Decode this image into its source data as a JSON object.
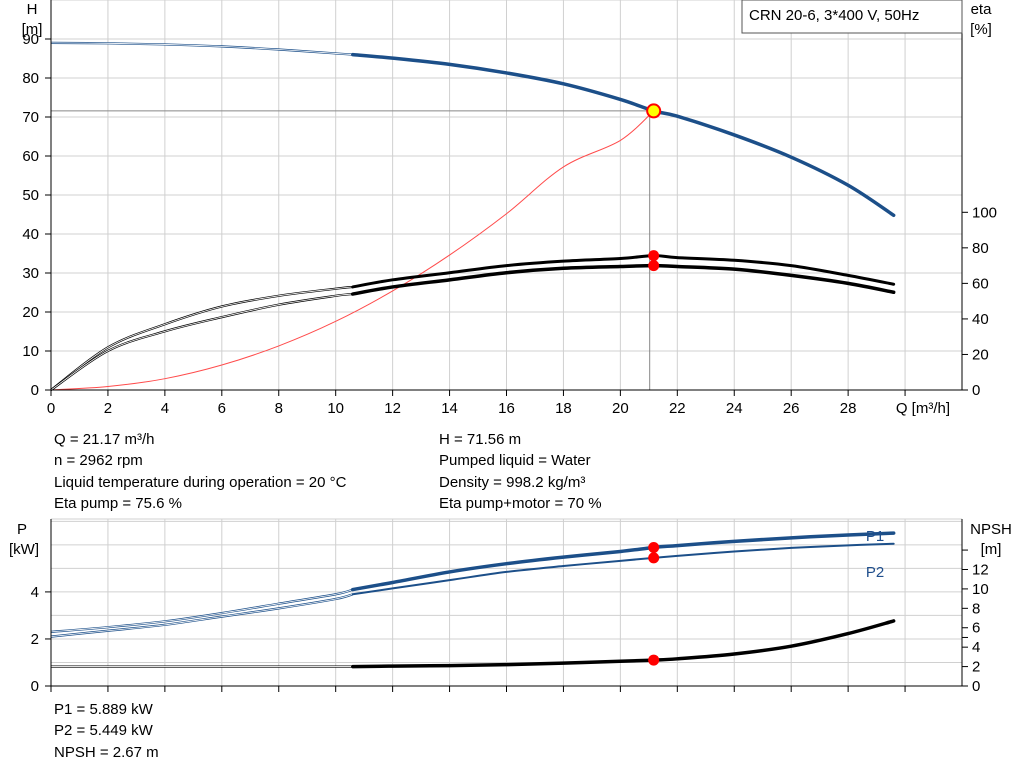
{
  "legend": "CRN 20-6, 3*400 V, 50Hz",
  "colors": {
    "head_curve": "#1c4f89",
    "power_curve": "#1c4f89",
    "efficiency_curve": "#000000",
    "system_curve": "#ff4b4b",
    "duty_point": "#ff0000",
    "duty_point_fill": "#ffff00",
    "grid": "#d0d0d0"
  },
  "info_top_left": [
    "Q = 21.17 m³/h",
    "n = 2962 rpm",
    "Liquid temperature during operation = 20 °C",
    "Eta pump = 75.6 %"
  ],
  "info_top_right": [
    "H = 71.56 m",
    "Pumped liquid = Water",
    "Density = 998.2 kg/m³",
    "Eta pump+motor = 70 %"
  ],
  "info_bottom": [
    "P1 = 5.889 kW",
    "P2 = 5.449 kW",
    "NPSH = 2.67 m"
  ],
  "chart_data": [
    {
      "type": "line",
      "name": "head-efficiency",
      "xlabel": "Q [m³/h]",
      "ylabel_left": [
        "H",
        "[m]"
      ],
      "ylabel_right": [
        "eta",
        "[%]"
      ],
      "xlim": [
        0,
        32
      ],
      "ylim_left": [
        0,
        100
      ],
      "ylim_right": [
        0,
        100
      ],
      "x_ticks": [
        0,
        2,
        4,
        6,
        8,
        10,
        12,
        14,
        16,
        18,
        20,
        22,
        24,
        26,
        28
      ],
      "y_ticks_left": [
        0,
        10,
        20,
        30,
        40,
        50,
        60,
        70,
        80,
        90
      ],
      "y_ticks_right": [
        0,
        20,
        40,
        60,
        80,
        100
      ],
      "grid": true,
      "legend_position": "top-right",
      "duty_point": {
        "q": 21.17,
        "h": 71.56,
        "eta_pump": 75.6,
        "eta_pump_motor": 70
      },
      "series": [
        {
          "name": "H",
          "axis": "left",
          "operating_from": 10.6,
          "x": [
            0,
            2,
            4,
            6,
            8,
            10,
            10.6,
            12,
            14,
            16,
            18,
            20,
            21.17,
            22,
            24,
            26,
            28,
            29.6
          ],
          "y": [
            89,
            88.9,
            88.6,
            88.1,
            87.3,
            86.3,
            86,
            85.1,
            83.5,
            81.3,
            78.5,
            74.5,
            71.56,
            70.2,
            65.4,
            59.7,
            52.5,
            44.8
          ]
        },
        {
          "name": "Eta pump",
          "axis": "right",
          "operating_from": 10.6,
          "x": [
            0,
            2,
            4,
            6,
            8,
            10,
            10.6,
            12,
            14,
            16,
            18,
            20,
            21.17,
            22,
            24,
            26,
            28,
            29.6
          ],
          "y": [
            0,
            24,
            37,
            47,
            53,
            57,
            58,
            62,
            66,
            70,
            72.5,
            74,
            75.6,
            74.5,
            73,
            70,
            64.5,
            59.5
          ]
        },
        {
          "name": "Eta pump+motor",
          "axis": "right",
          "operating_from": 10.6,
          "x": [
            0,
            2,
            4,
            6,
            8,
            10,
            10.6,
            12,
            14,
            16,
            18,
            20,
            21.17,
            22,
            24,
            26,
            28,
            29.6
          ],
          "y": [
            0,
            22,
            33,
            41,
            48,
            53,
            54,
            58,
            62,
            66,
            68.5,
            69.5,
            70,
            69.5,
            68,
            64.5,
            60,
            55
          ]
        },
        {
          "name": "system curve",
          "axis": "left",
          "x": [
            0,
            2,
            4,
            6,
            8,
            10,
            12,
            14,
            16,
            18,
            20,
            21.17
          ],
          "y": [
            0,
            0.9,
            2.9,
            6.4,
            11.3,
            17.6,
            25.4,
            34.6,
            45.2,
            57.2,
            64,
            71.56
          ]
        }
      ]
    },
    {
      "type": "line",
      "name": "power-npsh",
      "xlabel": "",
      "ylabel_left": [
        "P",
        "[kW]"
      ],
      "ylabel_right": [
        "NPSH",
        "[m]"
      ],
      "xlim": [
        0,
        32
      ],
      "ylim_left": [
        0,
        7.1
      ],
      "ylim_right": [
        0,
        17.2
      ],
      "y_ticks_left": [
        0,
        2,
        4
      ],
      "y_ticks_right": [
        0,
        2,
        4,
        6,
        8,
        10,
        12
      ],
      "y_ticks_right_unlabeled": [
        5,
        14
      ],
      "grid": true,
      "series": [
        {
          "name": "P1",
          "axis": "left",
          "operating_from": 10.6,
          "x": [
            0,
            2,
            4,
            6,
            8,
            10,
            10.6,
            12,
            14,
            16,
            18,
            20,
            21.17,
            22,
            24,
            26,
            28,
            29.6
          ],
          "y": [
            2.3,
            2.5,
            2.75,
            3.1,
            3.5,
            3.9,
            4.1,
            4.4,
            4.85,
            5.2,
            5.48,
            5.72,
            5.889,
            5.97,
            6.15,
            6.3,
            6.42,
            6.5
          ]
        },
        {
          "name": "P2",
          "axis": "left",
          "operating_from": 10.6,
          "x": [
            0,
            2,
            4,
            6,
            8,
            10,
            10.6,
            12,
            14,
            16,
            18,
            20,
            21.17,
            22,
            24,
            26,
            28,
            29.6
          ],
          "y": [
            2.1,
            2.35,
            2.6,
            2.95,
            3.3,
            3.7,
            3.9,
            4.15,
            4.5,
            4.85,
            5.1,
            5.32,
            5.449,
            5.53,
            5.72,
            5.87,
            5.98,
            6.05
          ]
        },
        {
          "name": "NPSH",
          "axis": "right",
          "operating_from": 10.6,
          "x": [
            0,
            2,
            4,
            6,
            8,
            10,
            10.6,
            12,
            14,
            16,
            18,
            20,
            21.17,
            22,
            24,
            26,
            28,
            29.6
          ],
          "y": [
            2.0,
            2.0,
            2.0,
            2.0,
            2.0,
            2.0,
            2.0,
            2.05,
            2.1,
            2.2,
            2.35,
            2.55,
            2.67,
            2.8,
            3.3,
            4.1,
            5.4,
            6.7
          ]
        }
      ]
    }
  ]
}
